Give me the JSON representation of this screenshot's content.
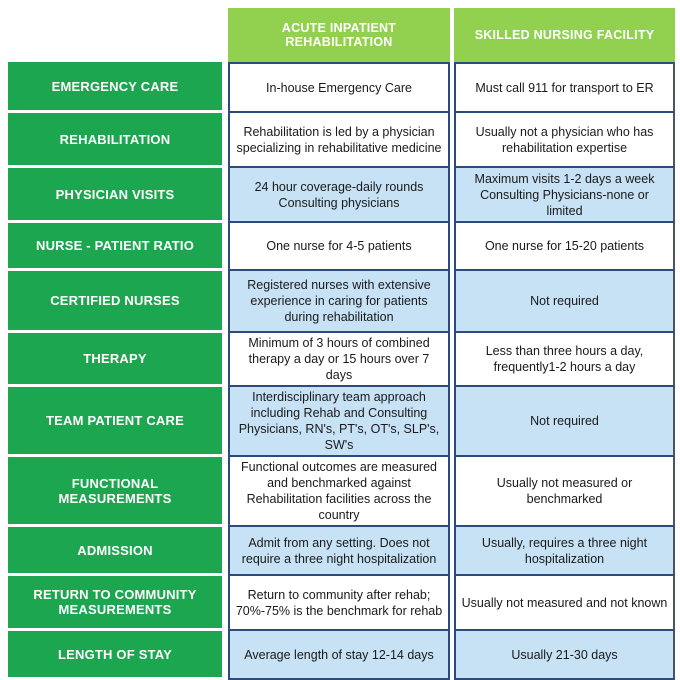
{
  "header": {
    "columns": [
      {
        "label": "ACUTE INPATIENT REHABILITATION"
      },
      {
        "label": "SKILLED NURSING FACILITY"
      }
    ]
  },
  "rows": [
    {
      "category": "EMERGENCY CARE",
      "acute_inpatient_rehabilitation": "In-house Emergency Care",
      "skilled_nursing_facility": "Must call 911 for transport to ER",
      "highlighted": false
    },
    {
      "category": "REHABILITATION",
      "acute_inpatient_rehabilitation": "Rehabilitation is led by a physician specializing in rehabilitative medicine",
      "skilled_nursing_facility": "Usually not a physician who has rehabilitation expertise",
      "highlighted": false
    },
    {
      "category": "PHYSICIAN VISITS",
      "acute_inpatient_rehabilitation": "24 hour coverage-daily rounds Consulting physicians",
      "skilled_nursing_facility": "Maximum visits 1-2 days a week Consulting Physicians-none or limited",
      "highlighted": true
    },
    {
      "category": "NURSE - PATIENT RATIO",
      "acute_inpatient_rehabilitation": "One nurse for 4-5 patients",
      "skilled_nursing_facility": "One nurse for 15-20 patients",
      "highlighted": false
    },
    {
      "category": "CERTIFIED NURSES",
      "acute_inpatient_rehabilitation": "Registered nurses with extensive experience in caring for patients during rehabilitation",
      "skilled_nursing_facility": "Not required",
      "highlighted": true
    },
    {
      "category": "THERAPY",
      "acute_inpatient_rehabilitation": "Minimum of 3 hours of combined therapy a day or 15 hours over 7 days",
      "skilled_nursing_facility": "Less than three hours a day, frequently1-2 hours a day",
      "highlighted": false
    },
    {
      "category": "TEAM PATIENT CARE",
      "acute_inpatient_rehabilitation": "Interdisciplinary team approach including Rehab and Consulting Physicians, RN's, PT's, OT's, SLP's, SW's",
      "skilled_nursing_facility": "Not required",
      "highlighted": true
    },
    {
      "category": "FUNCTIONAL MEASUREMENTS",
      "acute_inpatient_rehabilitation": "Functional outcomes are measured and benchmarked against Rehabilitation facilities across the country",
      "skilled_nursing_facility": "Usually not measured or benchmarked",
      "highlighted": false
    },
    {
      "category": "ADMISSION",
      "acute_inpatient_rehabilitation": "Admit from any setting.  Does not require a three night hospitalization",
      "skilled_nursing_facility": "Usually, requires a three night hospitalization",
      "highlighted": true
    },
    {
      "category": "RETURN TO COMMUNITY MEASUREMENTS",
      "acute_inpatient_rehabilitation": "Return to community after rehab; 70%-75% is the benchmark for rehab",
      "skilled_nursing_facility": "Usually not measured and not known",
      "highlighted": false
    },
    {
      "category": "LENGTH OF STAY",
      "acute_inpatient_rehabilitation": "Average length of stay 12-14 days",
      "skilled_nursing_facility": "Usually 21-30 days",
      "highlighted": true
    }
  ],
  "colors": {
    "column_header_green": "#92D050",
    "row_header_green": "#1CA64F",
    "highlight_blue": "#C7E1F5",
    "cell_border_navy": "#2B4A7E",
    "outer_edge_gray": "#4A5560",
    "header_text": "#FFFFFF",
    "cell_text": "#1A1A1A"
  }
}
